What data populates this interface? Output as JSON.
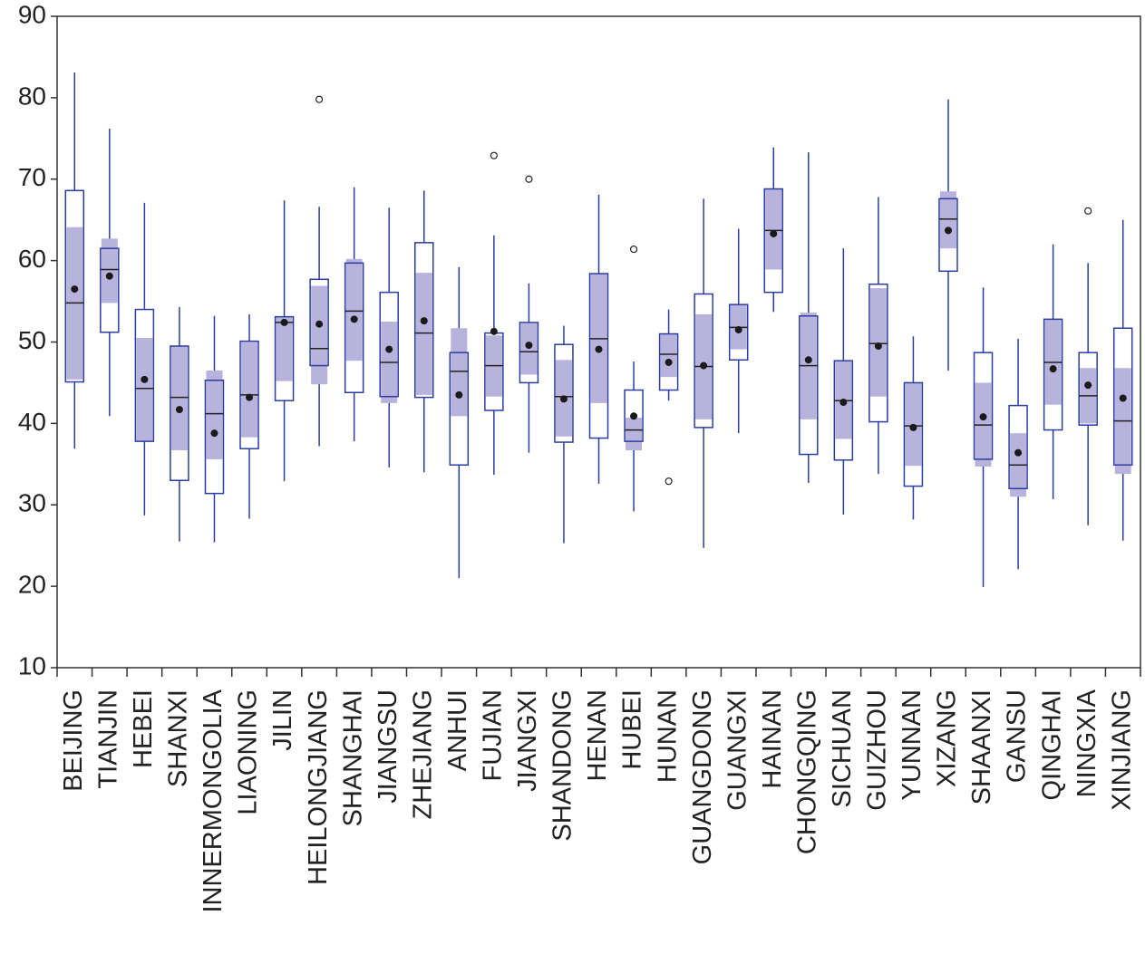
{
  "chart_data": {
    "type": "boxplot",
    "categories": [
      "BEIJING",
      "TIANJIN",
      "HEBEI",
      "SHANXI",
      "INNERMONGOLIA",
      "LIAONING",
      "JILIN",
      "HEILONGJIANG",
      "SHANGHAI",
      "JIANGSU",
      "ZHEJIANG",
      "ANHUI",
      "FUJIAN",
      "JIANGXI",
      "SHANDONG",
      "HENAN",
      "HUBEI",
      "HUNAN",
      "GUANGDONG",
      "GUANGXI",
      "HAINAN",
      "CHONGQING",
      "SICHUAN",
      "GUIZHOU",
      "YUNNAN",
      "XIZANG",
      "SHAANXI",
      "GANSU",
      "QINGHAI",
      "NINGXIA",
      "XINJIANG"
    ],
    "whisker_low": [
      36.9,
      40.9,
      28.7,
      25.5,
      25.4,
      28.3,
      32.9,
      37.2,
      37.8,
      34.6,
      34.0,
      21.0,
      33.7,
      36.4,
      25.3,
      32.6,
      29.2,
      42.8,
      24.7,
      38.8,
      53.7,
      32.7,
      28.8,
      33.8,
      28.2,
      46.5,
      19.9,
      22.1,
      30.7,
      27.5,
      25.6
    ],
    "q1": [
      45.1,
      51.2,
      37.8,
      33.0,
      31.4,
      36.9,
      42.8,
      47.1,
      43.8,
      43.3,
      43.2,
      34.9,
      41.6,
      45.0,
      37.7,
      38.2,
      37.8,
      44.1,
      39.5,
      47.8,
      56.1,
      36.2,
      35.5,
      40.2,
      32.3,
      58.7,
      35.6,
      32.0,
      39.2,
      39.8,
      34.9
    ],
    "median": [
      54.8,
      58.9,
      44.3,
      43.2,
      41.2,
      43.5,
      52.4,
      49.2,
      53.8,
      47.5,
      51.1,
      46.4,
      47.1,
      48.8,
      43.3,
      50.4,
      39.2,
      48.5,
      47.0,
      51.8,
      63.7,
      47.1,
      42.8,
      49.8,
      39.7,
      65.1,
      39.8,
      34.9,
      47.5,
      43.4,
      40.3
    ],
    "q3": [
      68.6,
      61.5,
      54.0,
      49.5,
      45.3,
      50.1,
      53.1,
      57.7,
      59.7,
      56.1,
      62.2,
      48.7,
      51.1,
      52.4,
      49.7,
      58.4,
      44.1,
      51.0,
      55.9,
      54.6,
      68.8,
      53.2,
      47.7,
      57.1,
      45.0,
      67.6,
      48.7,
      42.2,
      52.8,
      48.7,
      51.7
    ],
    "whisker_high": [
      83.1,
      76.2,
      67.1,
      54.3,
      53.2,
      53.4,
      67.4,
      66.6,
      69.0,
      66.5,
      68.6,
      59.2,
      63.1,
      57.2,
      52.0,
      68.1,
      47.6,
      54.0,
      67.6,
      63.9,
      73.9,
      73.3,
      61.5,
      67.8,
      50.7,
      79.8,
      56.7,
      50.4,
      62.0,
      59.7,
      65.0
    ],
    "mean": [
      56.5,
      58.1,
      45.4,
      41.7,
      38.8,
      43.2,
      52.4,
      52.2,
      52.8,
      49.1,
      52.6,
      43.5,
      51.3,
      49.6,
      43.0,
      49.1,
      40.9,
      47.5,
      47.1,
      51.5,
      63.3,
      47.8,
      42.6,
      49.5,
      39.5,
      63.7,
      40.8,
      36.4,
      46.7,
      44.7,
      43.1
    ],
    "ci_low": [
      45.4,
      54.8,
      37.8,
      36.7,
      35.6,
      38.3,
      45.2,
      44.8,
      47.7,
      42.5,
      43.5,
      40.9,
      43.3,
      46.0,
      38.4,
      42.5,
      36.7,
      45.7,
      40.5,
      49.1,
      58.9,
      40.5,
      38.1,
      43.3,
      34.8,
      61.5,
      34.7,
      31.0,
      42.3,
      40.0,
      33.8
    ],
    "ci_high": [
      64.1,
      62.7,
      50.5,
      49.5,
      46.5,
      50.0,
      53.1,
      56.9,
      60.2,
      52.5,
      58.5,
      51.7,
      50.8,
      52.3,
      47.8,
      58.4,
      40.7,
      51.0,
      53.4,
      54.6,
      68.8,
      53.6,
      47.7,
      56.6,
      45.0,
      68.5,
      45.0,
      38.8,
      52.8,
      46.8,
      46.8
    ],
    "outliers": [
      [],
      [],
      [],
      [],
      [],
      [],
      [],
      [
        79.8
      ],
      [],
      [],
      [],
      [],
      [
        72.9
      ],
      [
        70.0
      ],
      [],
      [],
      [
        61.4
      ],
      [
        32.9
      ],
      [],
      [],
      [],
      [],
      [],
      [],
      [],
      [],
      [],
      [],
      [],
      [
        66.1
      ],
      []
    ],
    "box_color": "#2b3ea0",
    "ci_color": "#b8b3dd",
    "mean_color": "#1a1a1a",
    "ylim": [
      10,
      90
    ],
    "yticks": [
      10,
      20,
      30,
      40,
      50,
      60,
      70,
      80,
      90
    ]
  }
}
